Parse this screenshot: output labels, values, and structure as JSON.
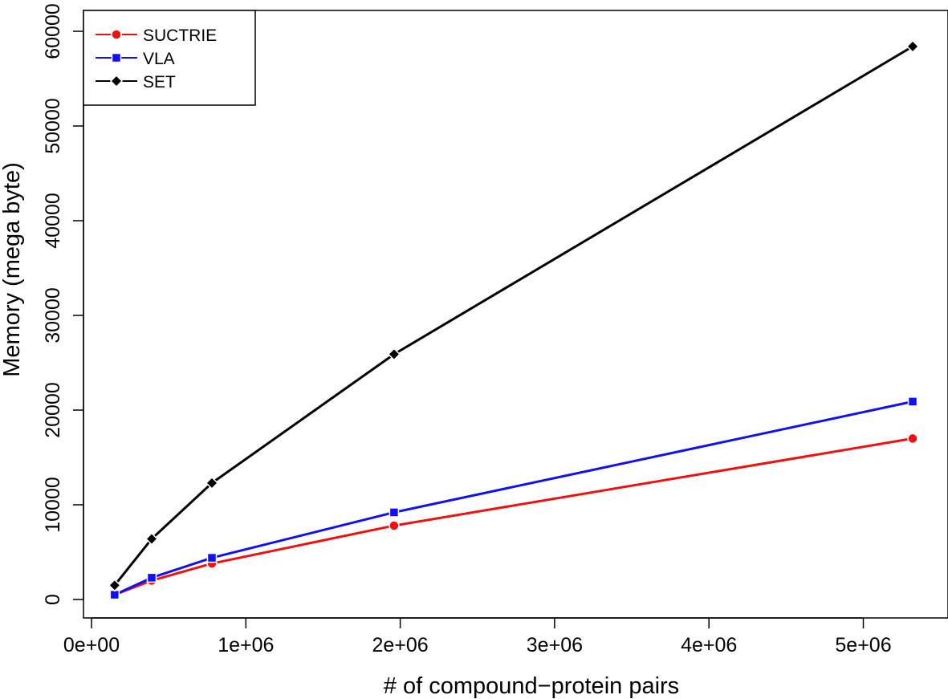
{
  "chart_data": {
    "type": "line",
    "title": "",
    "xlabel": "# of compound−protein pairs",
    "ylabel": "Memory (mega byte)",
    "xlim": [
      0,
      5500000
    ],
    "ylim": [
      0,
      62000
    ],
    "grid": false,
    "legend_position": "top-left",
    "x_ticks": [
      {
        "value": 0,
        "label": "0e+00"
      },
      {
        "value": 1000000,
        "label": "1e+06"
      },
      {
        "value": 2000000,
        "label": "2e+06"
      },
      {
        "value": 3000000,
        "label": "3e+06"
      },
      {
        "value": 4000000,
        "label": "4e+06"
      },
      {
        "value": 5000000,
        "label": "5e+06"
      }
    ],
    "y_ticks": [
      {
        "value": 0,
        "label": "0"
      },
      {
        "value": 10000,
        "label": "10000"
      },
      {
        "value": 20000,
        "label": "20000"
      },
      {
        "value": 30000,
        "label": "30000"
      },
      {
        "value": 40000,
        "label": "40000"
      },
      {
        "value": 50000,
        "label": "50000"
      },
      {
        "value": 60000,
        "label": "60000"
      }
    ],
    "x": [
      150000,
      390000,
      780000,
      1960000,
      5320000
    ],
    "series": [
      {
        "name": "SUCTRIE",
        "color": "#ee1111",
        "marker": "circle",
        "values": [
          500,
          2000,
          3800,
          7800,
          17000
        ]
      },
      {
        "name": "VLA",
        "color": "#1111ee",
        "marker": "square",
        "values": [
          500,
          2300,
          4400,
          9200,
          20900
        ]
      },
      {
        "name": "SET",
        "color": "#000000",
        "marker": "diamond",
        "values": [
          1500,
          6400,
          12300,
          25900,
          58400
        ]
      }
    ]
  }
}
